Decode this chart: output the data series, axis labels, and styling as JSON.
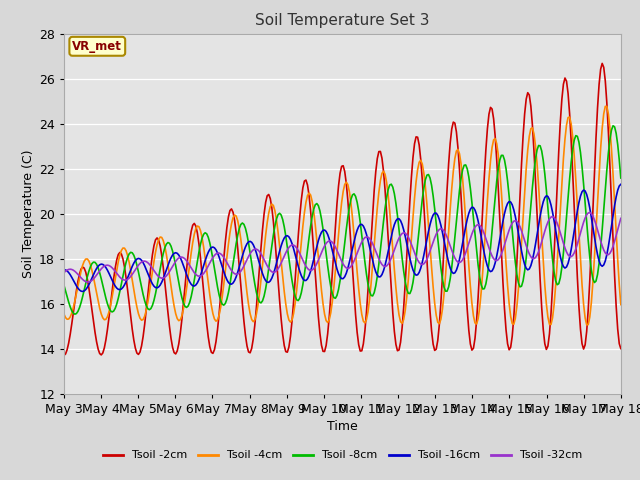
{
  "title": "Soil Temperature Set 3",
  "xlabel": "Time",
  "ylabel": "Soil Temperature (C)",
  "ylim": [
    12,
    28
  ],
  "annotation_text": "VR_met",
  "annotation_bg": "#ffffcc",
  "annotation_border": "#aa8800",
  "series_colors": [
    "#cc0000",
    "#ff8800",
    "#00bb00",
    "#0000cc",
    "#9933cc"
  ],
  "series_labels": [
    "Tsoil -2cm",
    "Tsoil -4cm",
    "Tsoil -8cm",
    "Tsoil -16cm",
    "Tsoil -32cm"
  ],
  "x_tick_labels": [
    "May 3",
    "May 4",
    "May 5",
    "May 6",
    "May 7",
    "May 8",
    "May 9",
    "May 10",
    "May 11",
    "May 12",
    "May 13",
    "May 14",
    "May 15",
    "May 16",
    "May 17",
    "May 18"
  ],
  "line_width": 1.2,
  "fig_width": 6.4,
  "fig_height": 4.8,
  "dpi": 100
}
